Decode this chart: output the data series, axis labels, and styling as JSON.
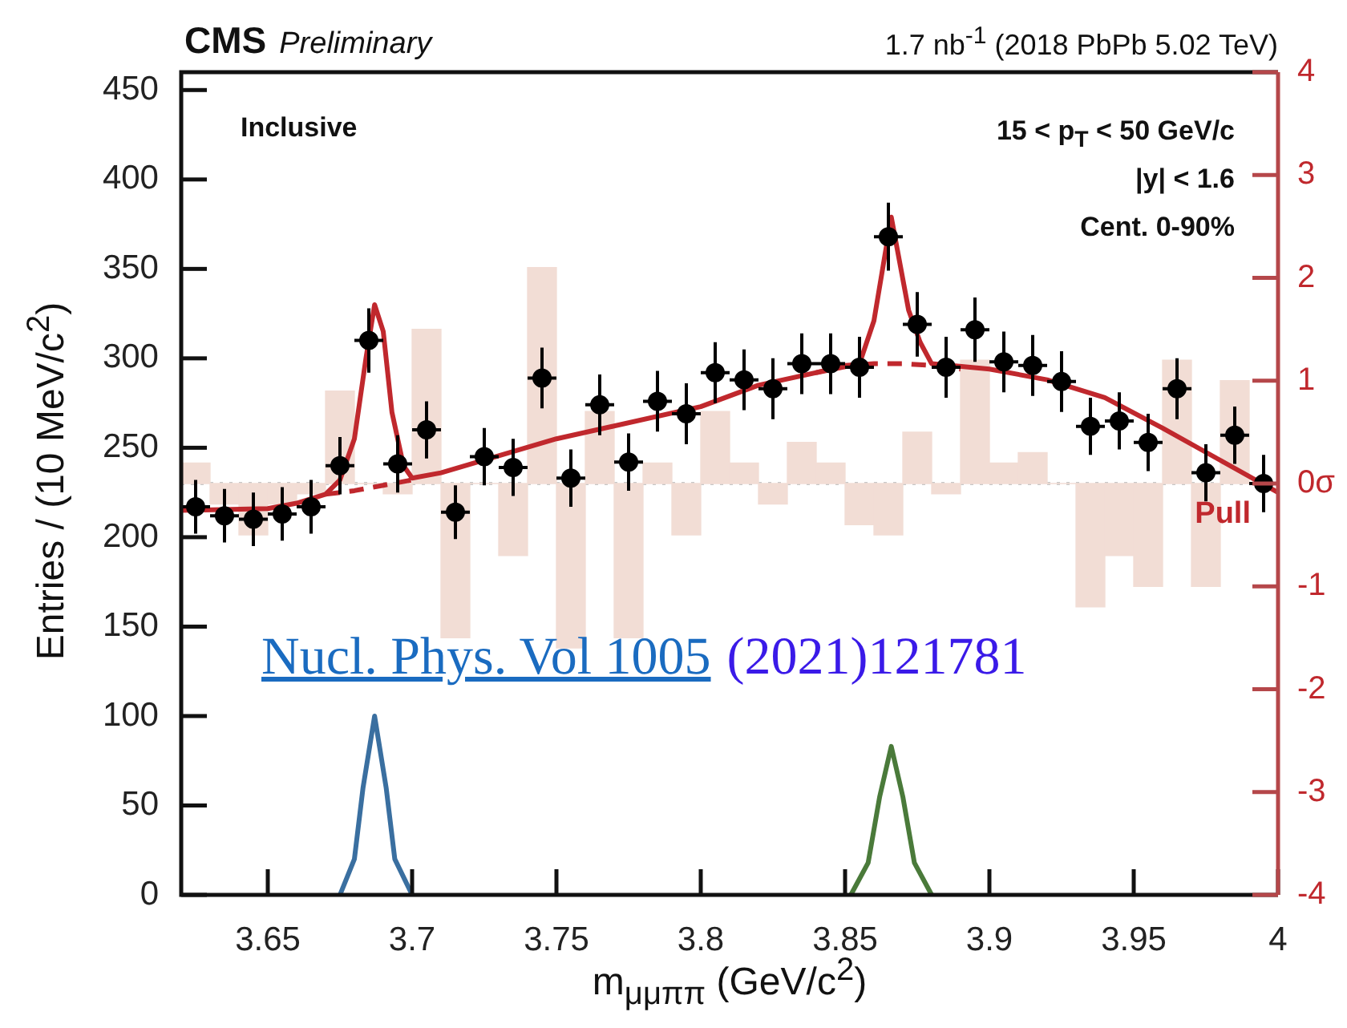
{
  "chart_data": {
    "type": "scatter",
    "title": "CMS",
    "subtitle": "Preliminary",
    "xlabel": "m$_{μμππ}$ (GeV/c$^{2}$)",
    "ylabel": "Entries / (10 MeV/c$^{2}$)",
    "annotations": [
      "1.7 nb$^{-1}$ (2018 PbPb 5.02 TeV)",
      "Inclusive",
      "15 < p$_{T}$ < 50 GeV/c",
      "|y| < 1.6",
      "Cent. 0-90%",
      "Pull",
      "Nucl. Phys. Vol 1005",
      "(2021)121781"
    ],
    "xlim": [
      3.62,
      4.0
    ],
    "xticks": [
      3.65,
      3.7,
      3.75,
      3.8,
      3.85,
      3.9,
      3.95,
      4
    ],
    "ylim": [
      0,
      460
    ],
    "yticks": [
      0,
      50,
      100,
      150,
      200,
      250,
      300,
      350,
      400,
      450
    ],
    "y2lim": [
      -4,
      4
    ],
    "y2ticks": [
      -4,
      -3,
      -2,
      -1,
      {
        "value": 0,
        "label": "0σ"
      },
      1,
      2,
      3,
      4
    ],
    "ref_lines": [
      {
        "axis": "y2",
        "value": 0,
        "color": "#c8c8c8",
        "line_style": "dotted"
      }
    ],
    "series": [
      {
        "type": "bar",
        "axis": "y2",
        "color": "#f2ddd5",
        "x": [
          3.625,
          3.635,
          3.645,
          3.655,
          3.665,
          3.675,
          3.685,
          3.695,
          3.705,
          3.715,
          3.725,
          3.735,
          3.745,
          3.755,
          3.765,
          3.775,
          3.785,
          3.795,
          3.805,
          3.815,
          3.825,
          3.835,
          3.845,
          3.855,
          3.865,
          3.875,
          3.885,
          3.895,
          3.905,
          3.915,
          3.925,
          3.935,
          3.945,
          3.955,
          3.965,
          3.975,
          3.985,
          3.995
        ],
        "values": [
          0.2,
          -0.2,
          -0.5,
          -0.2,
          -0.1,
          0.9,
          0,
          -0.1,
          1.5,
          -1.5,
          0,
          -0.7,
          2.1,
          -1.6,
          0.7,
          -1.5,
          0.2,
          -0.5,
          0.7,
          0.2,
          -0.2,
          0.4,
          0.2,
          -0.4,
          -0.5,
          0.5,
          -0.1,
          1.2,
          0.2,
          0.3,
          0,
          -1.2,
          -0.7,
          -1.0,
          1.2,
          -1.0,
          1.0,
          0
        ]
      },
      {
        "type": "line",
        "color": "#3a6fa0",
        "marker": "none",
        "x": [
          3.675,
          3.68,
          3.683,
          3.687,
          3.691,
          3.694,
          3.7
        ],
        "values": [
          0,
          20,
          60,
          100,
          60,
          20,
          0
        ]
      },
      {
        "type": "line",
        "color": "#4a7a3a",
        "marker": "none",
        "x": [
          3.852,
          3.858,
          3.862,
          3.866,
          3.87,
          3.874,
          3.88
        ],
        "values": [
          0,
          18,
          55,
          83,
          55,
          18,
          0
        ]
      },
      {
        "type": "line",
        "color": "#c0282d",
        "marker": "none",
        "line_style": "dashed",
        "x": [
          3.67,
          3.68,
          3.69,
          3.7,
          3.705,
          3.84,
          3.85,
          3.86,
          3.87,
          3.88,
          3.89
        ],
        "values": [
          224,
          226,
          229,
          232,
          null,
          292,
          296,
          297,
          297,
          296,
          294
        ]
      },
      {
        "type": "line",
        "color": "#c0282d",
        "marker": "none",
        "x": [
          3.62,
          3.65,
          3.66,
          3.67,
          3.675,
          3.68,
          3.684,
          3.687,
          3.69,
          3.693,
          3.697,
          3.7,
          3.71,
          3.75,
          3.8,
          3.82,
          3.84,
          3.855,
          3.86,
          3.866,
          3.872,
          3.876,
          3.88,
          3.9,
          3.92,
          3.94,
          3.96,
          3.98,
          4.0
        ],
        "values": [
          215,
          216,
          219,
          224,
          232,
          255,
          300,
          330,
          315,
          270,
          240,
          233,
          236,
          255,
          273,
          285,
          292,
          297,
          321,
          379,
          327,
          309,
          297,
          294,
          288,
          278,
          261,
          243,
          225
        ]
      },
      {
        "color": "#000000",
        "marker": "circle",
        "x": [
          3.625,
          3.635,
          3.645,
          3.655,
          3.665,
          3.675,
          3.685,
          3.695,
          3.705,
          3.715,
          3.725,
          3.735,
          3.745,
          3.755,
          3.765,
          3.775,
          3.785,
          3.795,
          3.805,
          3.815,
          3.825,
          3.835,
          3.845,
          3.855,
          3.865,
          3.875,
          3.885,
          3.895,
          3.905,
          3.915,
          3.925,
          3.935,
          3.945,
          3.955,
          3.965,
          3.975,
          3.985,
          3.995
        ],
        "values": [
          217,
          212,
          210,
          213,
          217,
          240,
          310,
          241,
          260,
          214,
          245,
          239,
          289,
          233,
          274,
          242,
          276,
          269,
          292,
          288,
          283,
          297,
          297,
          295,
          368,
          319,
          295,
          316,
          298,
          296,
          287,
          262,
          265,
          253,
          283,
          236,
          257,
          230
        ],
        "errors": [
          15,
          15,
          15,
          15,
          15,
          16,
          18,
          16,
          16,
          15,
          16,
          16,
          17,
          16,
          17,
          16,
          17,
          17,
          17,
          17,
          17,
          17,
          17,
          17,
          19,
          18,
          17,
          18,
          17,
          17,
          17,
          16,
          16,
          16,
          17,
          16,
          16,
          16
        ],
        "xerrors": [
          0.005,
          0.005,
          0.005,
          0.005,
          0.005,
          0.005,
          0.005,
          0.005,
          0.005,
          0.005,
          0.005,
          0.005,
          0.005,
          0.005,
          0.005,
          0.005,
          0.005,
          0.005,
          0.005,
          0.005,
          0.005,
          0.005,
          0.005,
          0.005,
          0.005,
          0.005,
          0.005,
          0.005,
          0.005,
          0.005,
          0.005,
          0.005,
          0.005,
          0.005,
          0.005,
          0.005,
          0.005,
          0.005
        ]
      }
    ]
  }
}
